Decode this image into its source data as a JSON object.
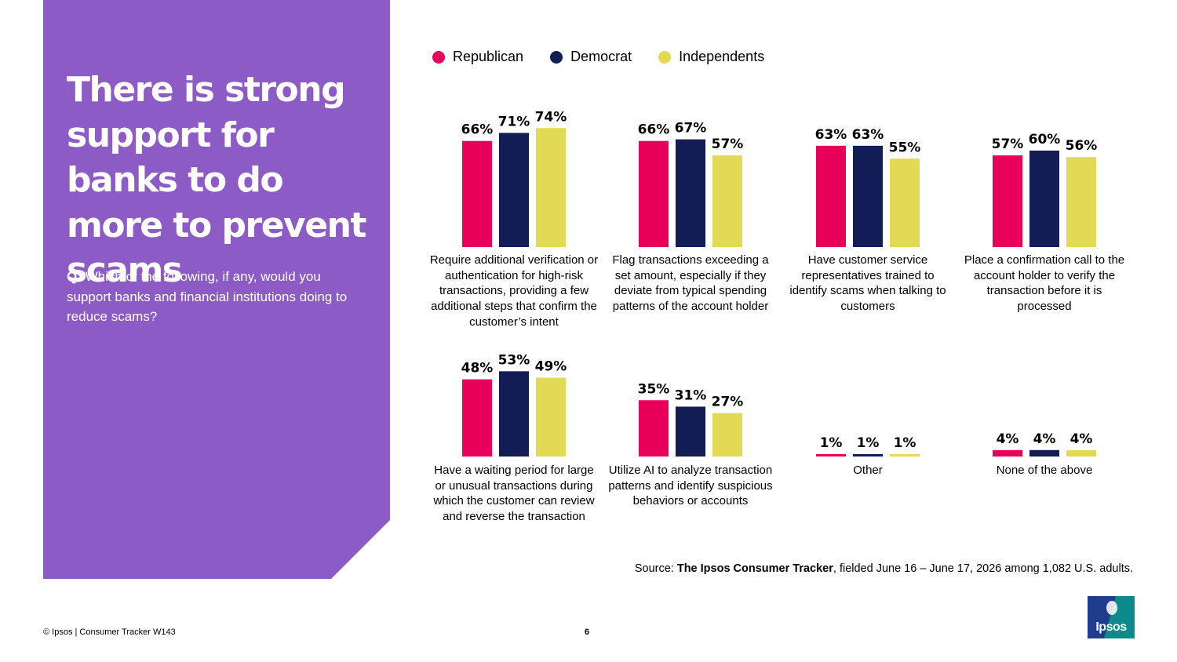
{
  "title": "There is strong support for banks to do more to prevent scams",
  "question": {
    "prefix": "Q:",
    "text": "Which of the following, if any, would you support banks and financial institutions doing to reduce scams?"
  },
  "colors": {
    "panel": "#8c5bc5",
    "republican": "#e8005a",
    "democrat": "#121c55",
    "independents": "#e2d955"
  },
  "chart_data": {
    "type": "bar",
    "title": "",
    "xlabel": "",
    "ylabel": "",
    "ylim": [
      0,
      100
    ],
    "legend": "top",
    "grid": false,
    "series": [
      {
        "name": "Republican",
        "color": "#e8005a",
        "values": [
          66,
          66,
          63,
          57,
          48,
          35,
          1,
          4
        ]
      },
      {
        "name": "Democrat",
        "color": "#121c55",
        "values": [
          71,
          67,
          63,
          60,
          53,
          31,
          1,
          4
        ]
      },
      {
        "name": "Independents",
        "color": "#e2d955",
        "values": [
          74,
          57,
          55,
          56,
          49,
          27,
          1,
          4
        ]
      }
    ],
    "categories": [
      "Require additional verification or authentication for high-risk transactions, providing a few additional steps that confirm the customer’s intent",
      "Flag transactions exceeding a set amount, especially if they deviate from typical spending patterns of the account holder",
      "Have customer service representatives trained to identify scams when talking to customers",
      "Place a confirmation call to the account holder to verify the transaction before it is processed",
      "Have a waiting period for large or unusual transactions during which the customer can review and reverse the transaction",
      "Utilize AI to analyze transaction patterns and identify suspicious behaviors or accounts",
      "Other",
      "None of the above"
    ],
    "value_suffix": "%"
  },
  "source": {
    "prefix": "Source: ",
    "bold": "The Ipsos Consumer Tracker",
    "rest": ", fielded June 16 – June 17, 2026 among 1,082 U.S. adults."
  },
  "footer": {
    "copyright": "© Ipsos | Consumer Tracker W143",
    "page_number": "6"
  },
  "logo": {
    "text": "Ipsos",
    "icon": "ipsos-logo-icon"
  }
}
